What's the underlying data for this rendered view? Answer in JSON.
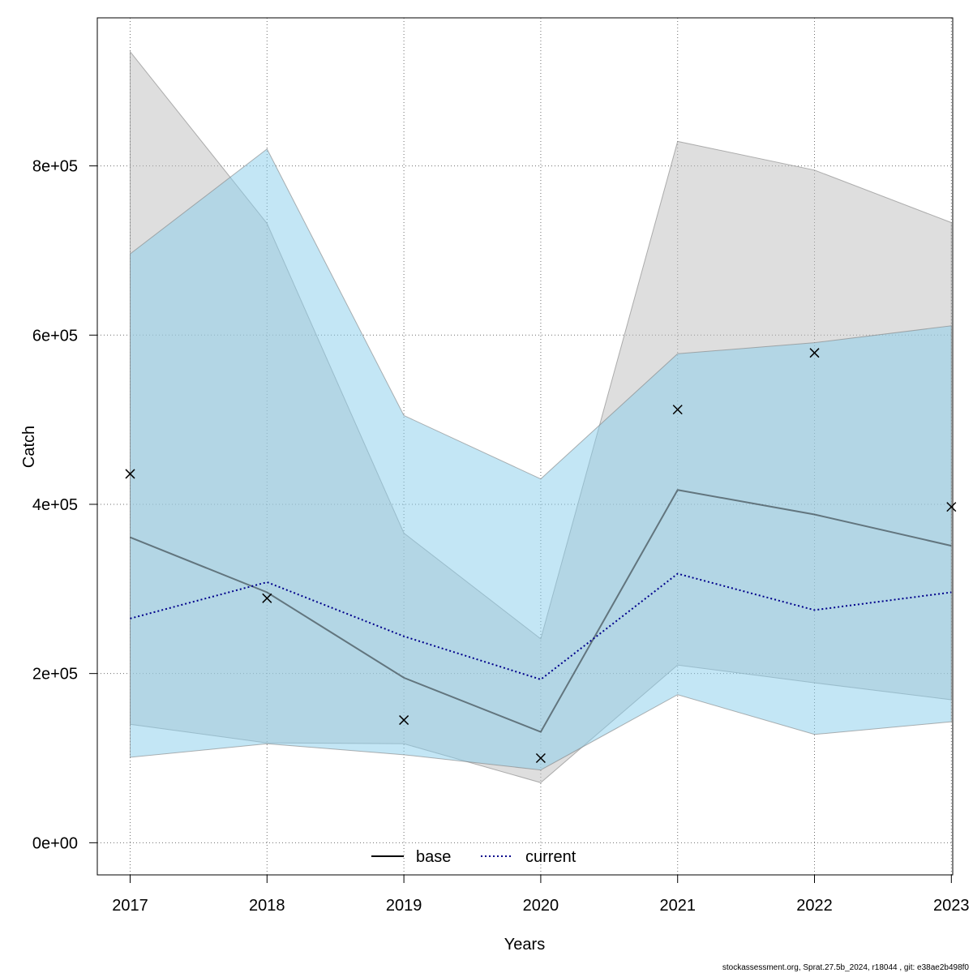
{
  "chart_data": {
    "type": "line",
    "xlabel": "Years",
    "ylabel": "Catch",
    "x": [
      2017,
      2018,
      2019,
      2020,
      2021,
      2022,
      2023
    ],
    "xlim": [
      2016.76,
      2023.01
    ],
    "ylim": [
      -38000,
      975000
    ],
    "x_ticks": [
      "2017",
      "2018",
      "2019",
      "2020",
      "2021",
      "2022",
      "2023"
    ],
    "y_ticks": [
      {
        "value": 0,
        "label": "0e+00"
      },
      {
        "value": 200000,
        "label": "2e+05"
      },
      {
        "value": 400000,
        "label": "4e+05"
      },
      {
        "value": 600000,
        "label": "6e+05"
      },
      {
        "value": 800000,
        "label": "8e+05"
      }
    ],
    "grid": true,
    "series": [
      {
        "name": "base",
        "line_style": "solid",
        "color": "#000000",
        "values": [
          361000,
          296000,
          195000,
          131000,
          417000,
          388000,
          351000
        ],
        "ci_upper": [
          935000,
          732000,
          366000,
          241000,
          829000,
          795000,
          733000
        ],
        "ci_lower": [
          140000,
          118000,
          117000,
          71000,
          210000,
          189000,
          169000
        ],
        "band_color": "#bebebe"
      },
      {
        "name": "current",
        "line_style": "dotted",
        "color": "#00008b",
        "values": [
          265000,
          308000,
          244000,
          193000,
          318000,
          275000,
          296000
        ],
        "ci_upper": [
          696000,
          820000,
          505000,
          430000,
          578000,
          591000,
          611000
        ],
        "ci_lower": [
          101000,
          117000,
          104000,
          86000,
          175000,
          128000,
          143000
        ],
        "band_color": "#87ceeb"
      }
    ],
    "observations": {
      "marker": "x",
      "values": [
        436000,
        289000,
        145000,
        100000,
        512000,
        579000,
        397000
      ]
    },
    "legend": {
      "placement": "bottom-center",
      "entries": [
        "base",
        "current"
      ]
    }
  },
  "footer_text": "stockassessment.org, Sprat.27.5b_2024, r18044 , git: e38ae2b498f0"
}
